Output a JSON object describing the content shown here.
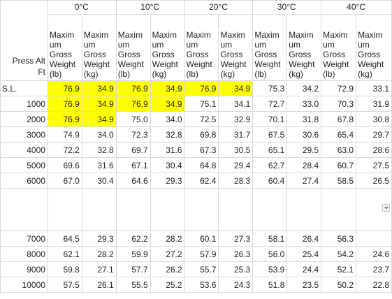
{
  "corner_label": [
    "Press Alt",
    "Ft"
  ],
  "temps": [
    "0°C",
    "10°C",
    "20°C",
    "30°C",
    "40°C"
  ],
  "subheader": {
    "lb": [
      "Maxim",
      "um",
      "Gross",
      "Weight",
      "(lb)"
    ],
    "kg": [
      "Maxim",
      "um",
      "Gross",
      "Weight",
      "(kg)"
    ]
  },
  "rows": [
    {
      "alt": "S.L.",
      "cells": [
        "76.9",
        "34.9",
        "76.9",
        "34.9",
        "76.9",
        "34.9",
        "75.3",
        "34.2",
        "72.9",
        "33.1"
      ],
      "hl": [
        1,
        1,
        1,
        1,
        1,
        1,
        0,
        0,
        0,
        0
      ]
    },
    {
      "alt": "1000",
      "cells": [
        "76.9",
        "34.9",
        "76.9",
        "34.9",
        "75.1",
        "34.1",
        "72.7",
        "33.0",
        "70.3",
        "31.9"
      ],
      "hl": [
        1,
        1,
        1,
        1,
        0,
        0,
        0,
        0,
        0,
        0
      ]
    },
    {
      "alt": "2000",
      "cells": [
        "76.9",
        "34.9",
        "75.0",
        "34.0",
        "72.5",
        "32.9",
        "70.1",
        "31.8",
        "67.8",
        "30.8"
      ],
      "hl": [
        1,
        1,
        0,
        0,
        0,
        0,
        0,
        0,
        0,
        0
      ]
    },
    {
      "alt": "3000",
      "cells": [
        "74.9",
        "34.0",
        "72.3",
        "32.8",
        "69.8",
        "31.7",
        "67.5",
        "30.6",
        "65.4",
        "29.7"
      ],
      "hl": [
        0,
        0,
        0,
        0,
        0,
        0,
        0,
        0,
        0,
        0
      ]
    },
    {
      "alt": "4000",
      "cells": [
        "72.2",
        "32.8",
        "69.7",
        "31.6",
        "67.3",
        "30.5",
        "65.1",
        "29.5",
        "63.0",
        "28.6"
      ],
      "hl": [
        0,
        0,
        0,
        0,
        0,
        0,
        0,
        0,
        0,
        0
      ]
    },
    {
      "alt": "5000",
      "cells": [
        "69.6",
        "31.6",
        "67.1",
        "30.4",
        "64.8",
        "29.4",
        "62.7",
        "28.4",
        "60.7",
        "27.5"
      ],
      "hl": [
        0,
        0,
        0,
        0,
        0,
        0,
        0,
        0,
        0,
        0
      ]
    },
    {
      "alt": "6000",
      "cells": [
        "67.0",
        "30.4",
        "64.6",
        "29.3",
        "62.4",
        "28.3",
        "60.4",
        "27.4",
        "58.5",
        "26.5"
      ],
      "hl": [
        0,
        0,
        0,
        0,
        0,
        0,
        0,
        0,
        0,
        0
      ]
    },
    {
      "alt": "",
      "cells": [
        "",
        "",
        "",
        "",
        "",
        "",
        "",
        "",
        "",
        ""
      ],
      "hl": [
        0,
        0,
        0,
        0,
        0,
        0,
        0,
        0,
        0,
        0
      ]
    },
    {
      "alt": "7000",
      "cells": [
        "64.5",
        "29.3",
        "62.2",
        "28.2",
        "60.1",
        "27.3",
        "58.1",
        "26.4",
        "56.3",
        ""
      ],
      "hl": [
        0,
        0,
        0,
        0,
        0,
        0,
        0,
        0,
        0,
        0
      ]
    },
    {
      "alt": "8000",
      "cells": [
        "62.1",
        "28.2",
        "59.9",
        "27.2",
        "57.9",
        "26.3",
        "56.0",
        "25.4",
        "54.2",
        "24.6"
      ],
      "hl": [
        0,
        0,
        0,
        0,
        0,
        0,
        0,
        0,
        0,
        0
      ]
    },
    {
      "alt": "9000",
      "cells": [
        "59.8",
        "27.1",
        "57.7",
        "26.2",
        "55.7",
        "25.3",
        "53.9",
        "24.4",
        "52.1",
        "23.7"
      ],
      "hl": [
        0,
        0,
        0,
        0,
        0,
        0,
        0,
        0,
        0,
        0
      ]
    },
    {
      "alt": "10000",
      "cells": [
        "57.5",
        "26.1",
        "55.5",
        "25.2",
        "53.6",
        "24.3",
        "51.8",
        "23.5",
        "50.2",
        "22.8"
      ],
      "hl": [
        0,
        0,
        0,
        0,
        0,
        0,
        0,
        0,
        0,
        0
      ]
    }
  ]
}
